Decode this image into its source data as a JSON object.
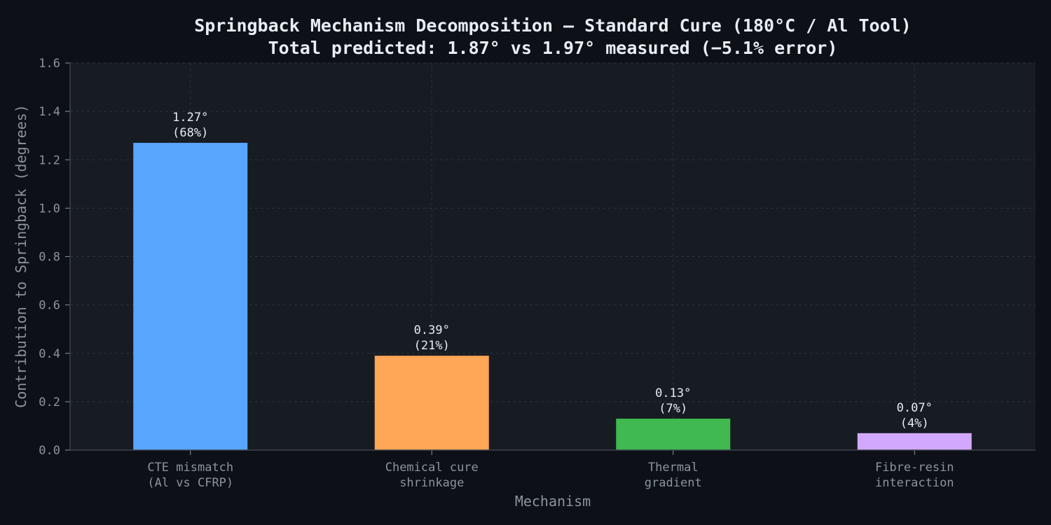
{
  "chart_data": {
    "type": "bar",
    "title": "Springback Mechanism Decomposition — Standard Cure (180°C / Al Tool)",
    "subtitle": "Total predicted: 1.87° vs 1.97° measured (−5.1% error)",
    "xlabel": "Mechanism",
    "ylabel": "Contribution to Springback (degrees)",
    "ylim": [
      0,
      1.6
    ],
    "yticks": [
      "0.0",
      "0.2",
      "0.4",
      "0.6",
      "0.8",
      "1.0",
      "1.2",
      "1.4",
      "1.6"
    ],
    "grid": true,
    "categories": [
      [
        "CTE mismatch",
        "(Al vs CFRP)"
      ],
      [
        "Chemical cure",
        "shrinkage"
      ],
      [
        "Thermal",
        "gradient"
      ],
      [
        "Fibre-resin",
        "interaction"
      ]
    ],
    "values": [
      1.27,
      0.39,
      0.13,
      0.07
    ],
    "value_labels": [
      "1.27°",
      "0.39°",
      "0.13°",
      "0.07°"
    ],
    "percent_labels": [
      "(68%)",
      "(21%)",
      "(7%)",
      "(4%)"
    ],
    "colors": [
      "#58a6ff",
      "#ffa657",
      "#3fb950",
      "#d2a8ff"
    ],
    "background": "#0d1017",
    "plot_background": "#171b22"
  }
}
